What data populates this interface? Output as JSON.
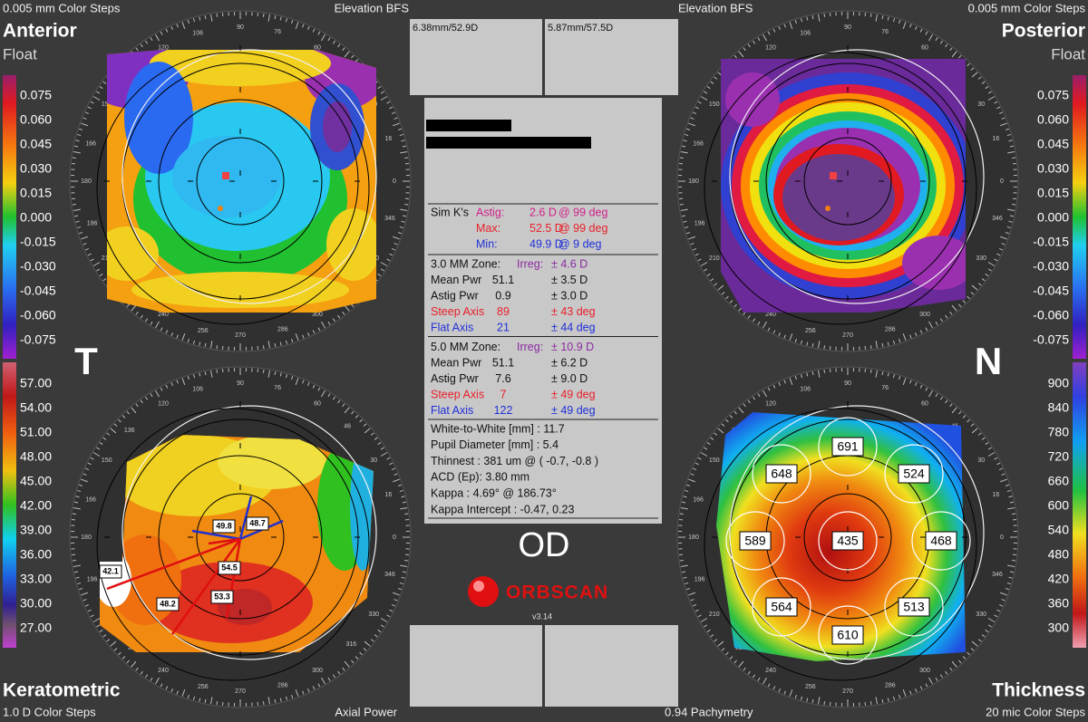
{
  "header": {
    "left_steps": "0.005 mm Color Steps",
    "left_mode": "Elevation BFS",
    "right_mode": "Elevation BFS",
    "right_steps": "0.005 mm Color Steps"
  },
  "quadrants": {
    "anterior": {
      "title": "Anterior",
      "subtitle": "Float",
      "scale": [
        "0.075",
        "0.060",
        "0.045",
        "0.030",
        "0.015",
        "0.000",
        "-0.015",
        "-0.030",
        "-0.045",
        "-0.060",
        "-0.075"
      ]
    },
    "posterior": {
      "title": "Posterior",
      "subtitle": "Float",
      "scale": [
        "0.075",
        "0.060",
        "0.045",
        "0.030",
        "0.015",
        "0.000",
        "-0.015",
        "-0.030",
        "-0.045",
        "-0.060",
        "-0.075"
      ]
    },
    "keratometric": {
      "title": "Keratometric",
      "steps": "1.0 D Color Steps",
      "mode": "Axial Power",
      "scale": [
        "57.00",
        "54.00",
        "51.00",
        "48.00",
        "45.00",
        "42.00",
        "39.00",
        "36.00",
        "33.00",
        "30.00",
        "27.00"
      ],
      "labels": [
        "49.8",
        "48.7",
        "54.5",
        "53.3",
        "48.2",
        "42.1"
      ]
    },
    "thickness": {
      "title": "Thickness",
      "steps": "20 mic Color Steps",
      "mode": "0.94 Pachymetry",
      "scale": [
        "900",
        "840",
        "780",
        "720",
        "660",
        "600",
        "540",
        "480",
        "420",
        "360",
        "300"
      ],
      "labels": [
        691,
        648,
        524,
        589,
        435,
        468,
        564,
        513,
        610
      ]
    }
  },
  "degrees": [
    0,
    16,
    30,
    46,
    60,
    76,
    90,
    106,
    120,
    136,
    150,
    166,
    180,
    196,
    210,
    226,
    240,
    256,
    270,
    286,
    300,
    316,
    330,
    346
  ],
  "side_labels": {
    "temporal": "T",
    "nasal": "N"
  },
  "top_boxes": [
    "6.38mm/52.9D",
    "5.87mm/57.5D"
  ],
  "info": {
    "sim_k": [
      {
        "label": "Sim K's",
        "name": "Astig:",
        "value": "2.6 D",
        "axis": "@ 99 deg",
        "color": "#d0208a"
      },
      {
        "name": "Max:",
        "value": "52.5 D",
        "axis": "@ 99 deg",
        "color": "#e8202a"
      },
      {
        "name": "Min:",
        "value": "49.9 D",
        "axis": "@ 9 deg",
        "color": "#2030d8"
      }
    ],
    "zones": [
      {
        "title": "3.0 MM Zone:",
        "irreg_name": "Irreg:",
        "irreg": "± 4.6 D",
        "rows": [
          {
            "name": "Mean Pwr",
            "value": "51.1",
            "error": "± 3.5 D",
            "color": "#111111"
          },
          {
            "name": "Astig Pwr",
            "value": "0.9",
            "error": "± 3.0 D",
            "color": "#111111"
          },
          {
            "name": "Steep Axis",
            "value": "89",
            "error": "± 43 deg",
            "color": "#e8202a"
          },
          {
            "name": "Flat Axis",
            "value": "21",
            "error": "± 44 deg",
            "color": "#2030d8"
          }
        ]
      },
      {
        "title": "5.0 MM Zone:",
        "irreg_name": "Irreg:",
        "irreg": "± 10.9 D",
        "rows": [
          {
            "name": "Mean Pwr",
            "value": "51.1",
            "error": "± 6.2 D",
            "color": "#111111"
          },
          {
            "name": "Astig Pwr",
            "value": "7.6",
            "error": "± 9.0 D",
            "color": "#111111"
          },
          {
            "name": "Steep Axis",
            "value": "7",
            "error": "± 49 deg",
            "color": "#e8202a"
          },
          {
            "name": "Flat Axis",
            "value": "122",
            "error": "± 49 deg",
            "color": "#2030d8"
          }
        ]
      }
    ],
    "measurements": [
      "White-to-White [mm] : 11.7",
      "Pupil Diameter [mm] :  5.4",
      "Thinnest : 381 um @ ( -0.7, -0.8 )",
      "ACD (Ep): 3.80 mm",
      "Kappa : 4.69° @ 186.73°",
      "Kappa Intercept : -0.47, 0.23"
    ]
  },
  "eye": "OD",
  "logo": {
    "name": "ORBSCAN",
    "version": "v3.14"
  }
}
